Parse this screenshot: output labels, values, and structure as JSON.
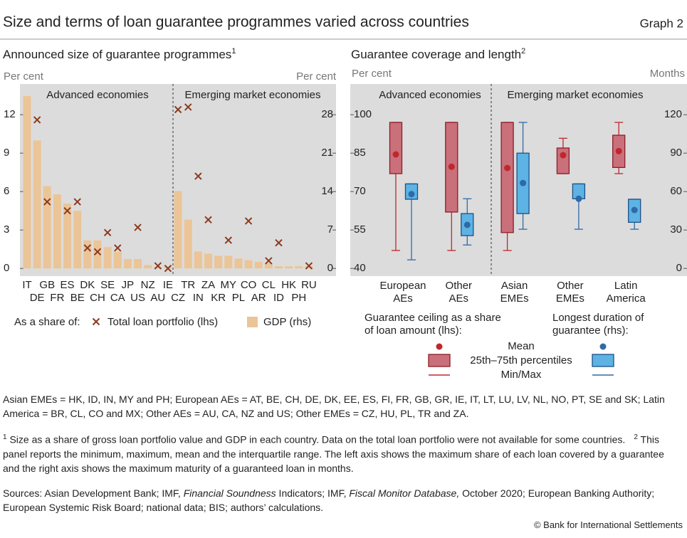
{
  "header": {
    "title": "Size and terms of loan guarantee programmes varied across countries",
    "graph": "Graph 2"
  },
  "chart_data": [
    {
      "type": "bar",
      "title": "Announced size of guarantee programmes",
      "title_note": "1",
      "y_label": "Per cent",
      "y2_label": "Per cent",
      "group_labels": [
        "Advanced economies",
        "Emerging market economies"
      ],
      "categories": [
        "IT",
        "DE",
        "GB",
        "FR",
        "ES",
        "BE",
        "DK",
        "CH",
        "SE",
        "CA",
        "JP",
        "US",
        "NZ",
        "AU",
        "IE",
        "CZ",
        "TR",
        "IN",
        "ZA",
        "KR",
        "MY",
        "PL",
        "CO",
        "AR",
        "CL",
        "ID",
        "HK",
        "PH",
        "RU"
      ],
      "legend_title": "As a share of:",
      "series": [
        {
          "name": "Total loan portfolio (lhs)",
          "type": "scatter",
          "marker": "cross",
          "color": "#8b3a1e",
          "values": [
            null,
            11.6,
            5.2,
            null,
            4.5,
            5.2,
            1.6,
            1.3,
            2.8,
            1.6,
            null,
            3.2,
            null,
            0.2,
            0,
            12.4,
            12.6,
            7.2,
            3.8,
            null,
            2.2,
            null,
            3.7,
            null,
            0.6,
            2.0,
            null,
            null,
            0.2
          ]
        },
        {
          "name": "GDP (rhs)",
          "type": "bar",
          "axis": "y2",
          "color": "#ebc597",
          "values": [
            31.4,
            23.3,
            15.0,
            13.5,
            11.8,
            10.5,
            5.1,
            5.1,
            3.9,
            3.0,
            1.7,
            1.7,
            0.6,
            0.3,
            0.3,
            14.1,
            8.9,
            3.1,
            2.7,
            2.3,
            2.3,
            1.8,
            1.5,
            1.2,
            0.9,
            0.4,
            0.4,
            0.4,
            0.4
          ]
        }
      ],
      "ylim": [
        -0.6,
        14.4
      ],
      "yticks": [
        0,
        3,
        6,
        9,
        12
      ],
      "y2lim": [
        -1.4,
        33.6
      ],
      "y2ticks": [
        0,
        7,
        14,
        21,
        28
      ],
      "grid": false
    },
    {
      "type": "box",
      "title": "Guarantee coverage and length",
      "title_note": "2",
      "y_label": "Per cent",
      "y2_label": "Months",
      "group_labels": [
        "Advanced economies",
        "Emerging market economies"
      ],
      "categories": [
        "European AEs",
        "Other AEs",
        "Asian EMEs",
        "Other EMEs",
        "Latin America"
      ],
      "legend": [
        "Mean",
        "25th–75th percentiles",
        "Min/Max"
      ],
      "series": [
        {
          "name": "Guarantee ceiling as a share of loan amount (lhs):",
          "color": "#c0272d",
          "fill": "#c9707b",
          "edge": "#8e1d28",
          "q1": [
            77,
            62,
            54,
            77,
            79.4
          ],
          "q3": [
            97,
            97,
            97,
            87,
            92
          ],
          "mean": [
            84.5,
            79.7,
            79.2,
            84.2,
            85.8
          ],
          "min": [
            47,
            47,
            47,
            77,
            77
          ],
          "max": [
            97,
            97,
            97,
            90.8,
            97
          ]
        },
        {
          "name": "Longest duration of guarantee (rhs):",
          "axis": "y2",
          "color": "#2f6aa8",
          "fill": "#5cb3e4",
          "edge": "#1f4f86",
          "q1": [
            54,
            25.6,
            42.8,
            54.4,
            36
          ],
          "q3": [
            66,
            42.8,
            90,
            66,
            54
          ],
          "mean": [
            58,
            34,
            66.7,
            54.4,
            45.6
          ],
          "min": [
            6.7,
            18.3,
            30.6,
            30.6,
            30.6
          ],
          "max": [
            66,
            54.4,
            114,
            66,
            54
          ]
        }
      ],
      "ylim": [
        37,
        112
      ],
      "yticks": [
        40,
        55,
        70,
        85,
        100
      ],
      "y2lim": [
        -6,
        144
      ],
      "y2ticks": [
        0,
        30,
        60,
        90,
        120
      ],
      "grid": false
    }
  ],
  "notes": "Asian EMEs = HK, ID, IN, MY and PH; European AEs = AT, BE, CH, DE, DK, EE, ES, FI, FR, GB, GR, IE, IT, LT, LU, LV, NL, NO, PT, SE and SK; Latin America = BR, CL, CO and MX; Other AEs = AU, CA, NZ and US; Other EMEs = CZ, HU, PL, TR and ZA.",
  "footnotes": [
    {
      "mark": "1",
      "text": "Size as a share of gross loan portfolio value and GDP in each country. Data on the total loan portfolio were not available for some countries."
    },
    {
      "mark": "2",
      "text": "This panel reports the minimum, maximum, mean and the interquartile range. The left axis shows the maximum share of each loan covered by a guarantee and the right axis shows the maximum maturity of a guaranteed loan in months."
    }
  ],
  "sources": [
    {
      "text": "Sources: Asian Development Bank; IMF, "
    },
    {
      "text": "Financial Soundness",
      "italic": true
    },
    {
      "text": " Indicators; IMF, "
    },
    {
      "text": "Fiscal Monitor Database,",
      "italic": true
    },
    {
      "text": " October 2020; European Banking Authority; European Systemic Risk Board; national data; BIS; authors’ calculations."
    }
  ],
  "copyright": "© Bank for International Settlements"
}
